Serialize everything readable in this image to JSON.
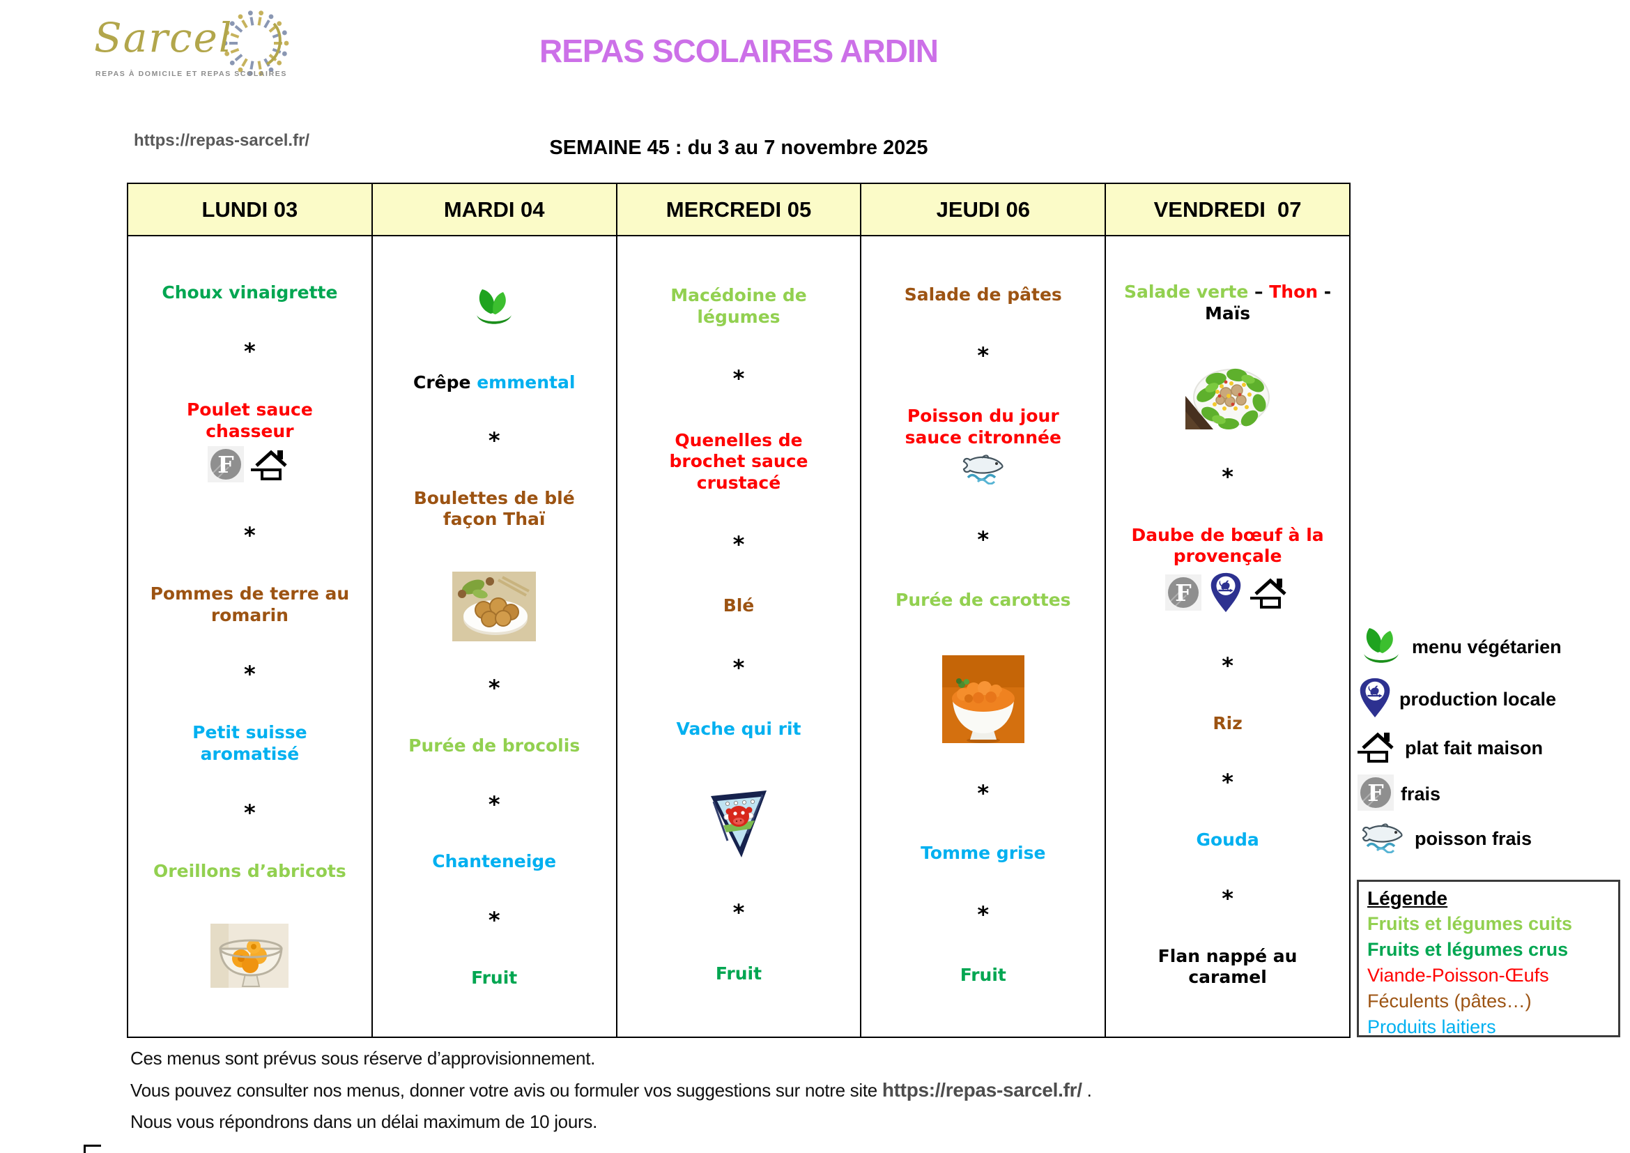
{
  "logo": {
    "brand": "Sarcel",
    "caption": "REPAS À DOMICILE ET REPAS SCOLAIRES"
  },
  "header": {
    "title": "REPAS SCOLAIRES ARDIN",
    "url": "https://repas-sarcel.fr/",
    "week": "SEMAINE 45 : du 3 au 7 novembre 2025"
  },
  "palette": {
    "black": "#000000",
    "red": "#FF0000",
    "dark_green": "#00A651",
    "light_green": "#92D050",
    "brown": "#9C5312",
    "cyan": "#00B0F0",
    "title_violet": "#CC70E8",
    "gray": "#595959",
    "header_bg": "#FBFBC8"
  },
  "table": {
    "days": [
      {
        "label": "LUNDI 03",
        "items": [
          {
            "type": "text",
            "runs": [
              {
                "text": "Choux vinaigrette",
                "color": "dark_green"
              }
            ]
          },
          {
            "type": "star",
            "text": "*"
          },
          {
            "type": "text",
            "runs": [
              {
                "text": "Poulet sauce chasseur",
                "color": "red"
              }
            ],
            "icons": [
              "frais-icon",
              "maison-icon"
            ]
          },
          {
            "type": "star",
            "text": "*"
          },
          {
            "type": "text",
            "runs": [
              {
                "text": "Pommes de terre au romarin",
                "color": "brown"
              }
            ]
          },
          {
            "type": "star",
            "text": "*"
          },
          {
            "type": "text",
            "runs": [
              {
                "text": "Petit suisse aromatisé",
                "color": "cyan"
              }
            ]
          },
          {
            "type": "star",
            "text": "*"
          },
          {
            "type": "text",
            "runs": [
              {
                "text": "Oreillons d’abricots",
                "color": "light_green"
              }
            ]
          },
          {
            "type": "image",
            "name": "apricots-photo"
          }
        ]
      },
      {
        "label": "MARDI 04",
        "items": [
          {
            "type": "icons",
            "icons": [
              "vegetarien-icon"
            ]
          },
          {
            "type": "text",
            "runs": [
              {
                "text": "Crêpe ",
                "color": "black"
              },
              {
                "text": "emmental",
                "color": "cyan"
              }
            ]
          },
          {
            "type": "star",
            "text": "*"
          },
          {
            "type": "text",
            "runs": [
              {
                "text": "Boulettes de blé façon Thaï",
                "color": "brown"
              }
            ]
          },
          {
            "type": "image",
            "name": "boulettes-photo"
          },
          {
            "type": "star",
            "text": "*"
          },
          {
            "type": "text",
            "runs": [
              {
                "text": "Purée de brocolis",
                "color": "light_green"
              }
            ]
          },
          {
            "type": "star",
            "text": "*"
          },
          {
            "type": "text",
            "runs": [
              {
                "text": "Chanteneige",
                "color": "cyan"
              }
            ]
          },
          {
            "type": "star",
            "text": "*"
          },
          {
            "type": "text",
            "runs": [
              {
                "text": "Fruit",
                "color": "dark_green"
              }
            ]
          }
        ]
      },
      {
        "label": "MERCREDI 05",
        "items": [
          {
            "type": "text",
            "runs": [
              {
                "text": "Macédoine de légumes",
                "color": "light_green"
              }
            ]
          },
          {
            "type": "star",
            "text": "*"
          },
          {
            "type": "text",
            "runs": [
              {
                "text": "Quenelles de brochet sauce crustacé",
                "color": "red"
              }
            ]
          },
          {
            "type": "star",
            "text": "*"
          },
          {
            "type": "text",
            "runs": [
              {
                "text": "Blé",
                "color": "brown"
              }
            ]
          },
          {
            "type": "star",
            "text": "*"
          },
          {
            "type": "text",
            "runs": [
              {
                "text": "Vache qui rit",
                "color": "cyan"
              }
            ]
          },
          {
            "type": "image",
            "name": "vache-qui-rit-photo"
          },
          {
            "type": "star",
            "text": "*"
          },
          {
            "type": "text",
            "runs": [
              {
                "text": "Fruit",
                "color": "dark_green"
              }
            ]
          }
        ]
      },
      {
        "label": "JEUDI 06",
        "items": [
          {
            "type": "text",
            "runs": [
              {
                "text": "Salade de pâtes",
                "color": "brown"
              }
            ]
          },
          {
            "type": "star",
            "text": "*"
          },
          {
            "type": "text",
            "runs": [
              {
                "text": "Poisson du jour sauce citronnée",
                "color": "red"
              }
            ],
            "icons": [
              "poisson-icon"
            ]
          },
          {
            "type": "star",
            "text": "*"
          },
          {
            "type": "text",
            "runs": [
              {
                "text": "Purée de carottes",
                "color": "light_green"
              }
            ]
          },
          {
            "type": "image",
            "name": "puree-carottes-photo"
          },
          {
            "type": "star",
            "text": "*"
          },
          {
            "type": "text",
            "runs": [
              {
                "text": "Tomme grise",
                "color": "cyan"
              }
            ]
          },
          {
            "type": "star",
            "text": "*"
          },
          {
            "type": "text",
            "runs": [
              {
                "text": "Fruit",
                "color": "dark_green"
              }
            ]
          }
        ]
      },
      {
        "label": "VENDREDI  07",
        "items": [
          {
            "type": "text",
            "runs": [
              {
                "text": "Salade verte ",
                "color": "light_green"
              },
              {
                "text": "– ",
                "color": "black"
              },
              {
                "text": "Thon",
                "color": "red"
              },
              {
                "text": " - Maïs",
                "color": "black"
              }
            ]
          },
          {
            "type": "image",
            "name": "salade-thon-photo"
          },
          {
            "type": "star",
            "text": "*"
          },
          {
            "type": "text",
            "runs": [
              {
                "text": "Daube de bœuf à la provençale",
                "color": "red"
              }
            ],
            "icons": [
              "frais-icon",
              "locale-icon",
              "maison-icon"
            ]
          },
          {
            "type": "star",
            "text": "*"
          },
          {
            "type": "text",
            "runs": [
              {
                "text": "Riz",
                "color": "brown"
              }
            ]
          },
          {
            "type": "star",
            "text": "*"
          },
          {
            "type": "text",
            "runs": [
              {
                "text": "Gouda",
                "color": "cyan"
              }
            ]
          },
          {
            "type": "star",
            "text": "*"
          },
          {
            "type": "text",
            "runs": [
              {
                "text": "Flan nappé au caramel",
                "color": "black"
              }
            ]
          }
        ]
      }
    ]
  },
  "legend_icons": [
    {
      "icon": "vegetarien-icon",
      "label": "menu végétarien"
    },
    {
      "icon": "locale-icon",
      "label": "production locale"
    },
    {
      "icon": "maison-icon",
      "label": "plat fait maison"
    },
    {
      "icon": "frais-icon",
      "label": "frais"
    },
    {
      "icon": "poisson-icon",
      "label": "poisson frais"
    }
  ],
  "legend_box": {
    "title": "Légende",
    "items": [
      {
        "label": "Fruits et légumes cuits",
        "color": "light_green",
        "bold": true
      },
      {
        "label": "Fruits et légumes crus",
        "color": "dark_green",
        "bold": true
      },
      {
        "label": "Viande-Poisson-Œufs",
        "color": "red",
        "bold": false
      },
      {
        "label": "Féculents (pâtes…)",
        "color": "brown",
        "bold": false
      },
      {
        "label": "Produits laitiers",
        "color": "cyan",
        "bold": false
      }
    ]
  },
  "footer": {
    "line1": "Ces menus sont prévus sous réserve d’approvisionnement.",
    "line2_prefix": "Vous pouvez consulter nos menus, donner votre avis ou formuler vos suggestions sur notre site ",
    "line2_url": "https://repas-sarcel.fr/",
    "line2_suffix": " .",
    "line3": "Nous vous répondrons dans un délai maximum de 10 jours."
  }
}
